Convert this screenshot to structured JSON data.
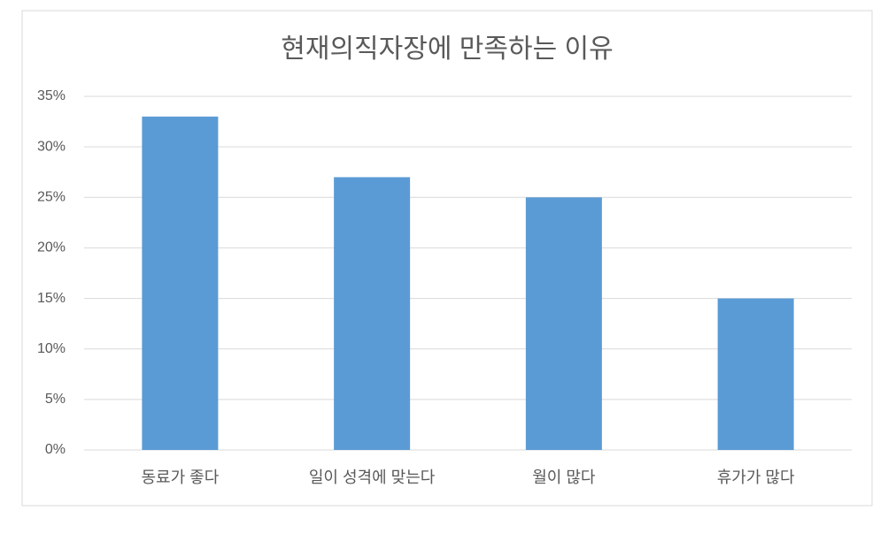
{
  "chart_data": {
    "type": "bar",
    "title": "현재의직자장에 만족하는 이유",
    "categories": [
      "동료가 좋다",
      "일이 성격에 맞는다",
      "월이 많다",
      "휴가가 많다"
    ],
    "values": [
      33,
      27,
      25,
      15
    ],
    "color": "#5b9bd5",
    "ylim": [
      0,
      35
    ],
    "yticks": [
      {
        "value": 0,
        "label": "0%"
      },
      {
        "value": 5,
        "label": "5%"
      },
      {
        "value": 10,
        "label": "10%"
      },
      {
        "value": 15,
        "label": "15%"
      },
      {
        "value": 20,
        "label": "20%"
      },
      {
        "value": 25,
        "label": "25%"
      },
      {
        "value": 30,
        "label": "30%"
      },
      {
        "value": 35,
        "label": "35%"
      }
    ],
    "grid": true
  }
}
